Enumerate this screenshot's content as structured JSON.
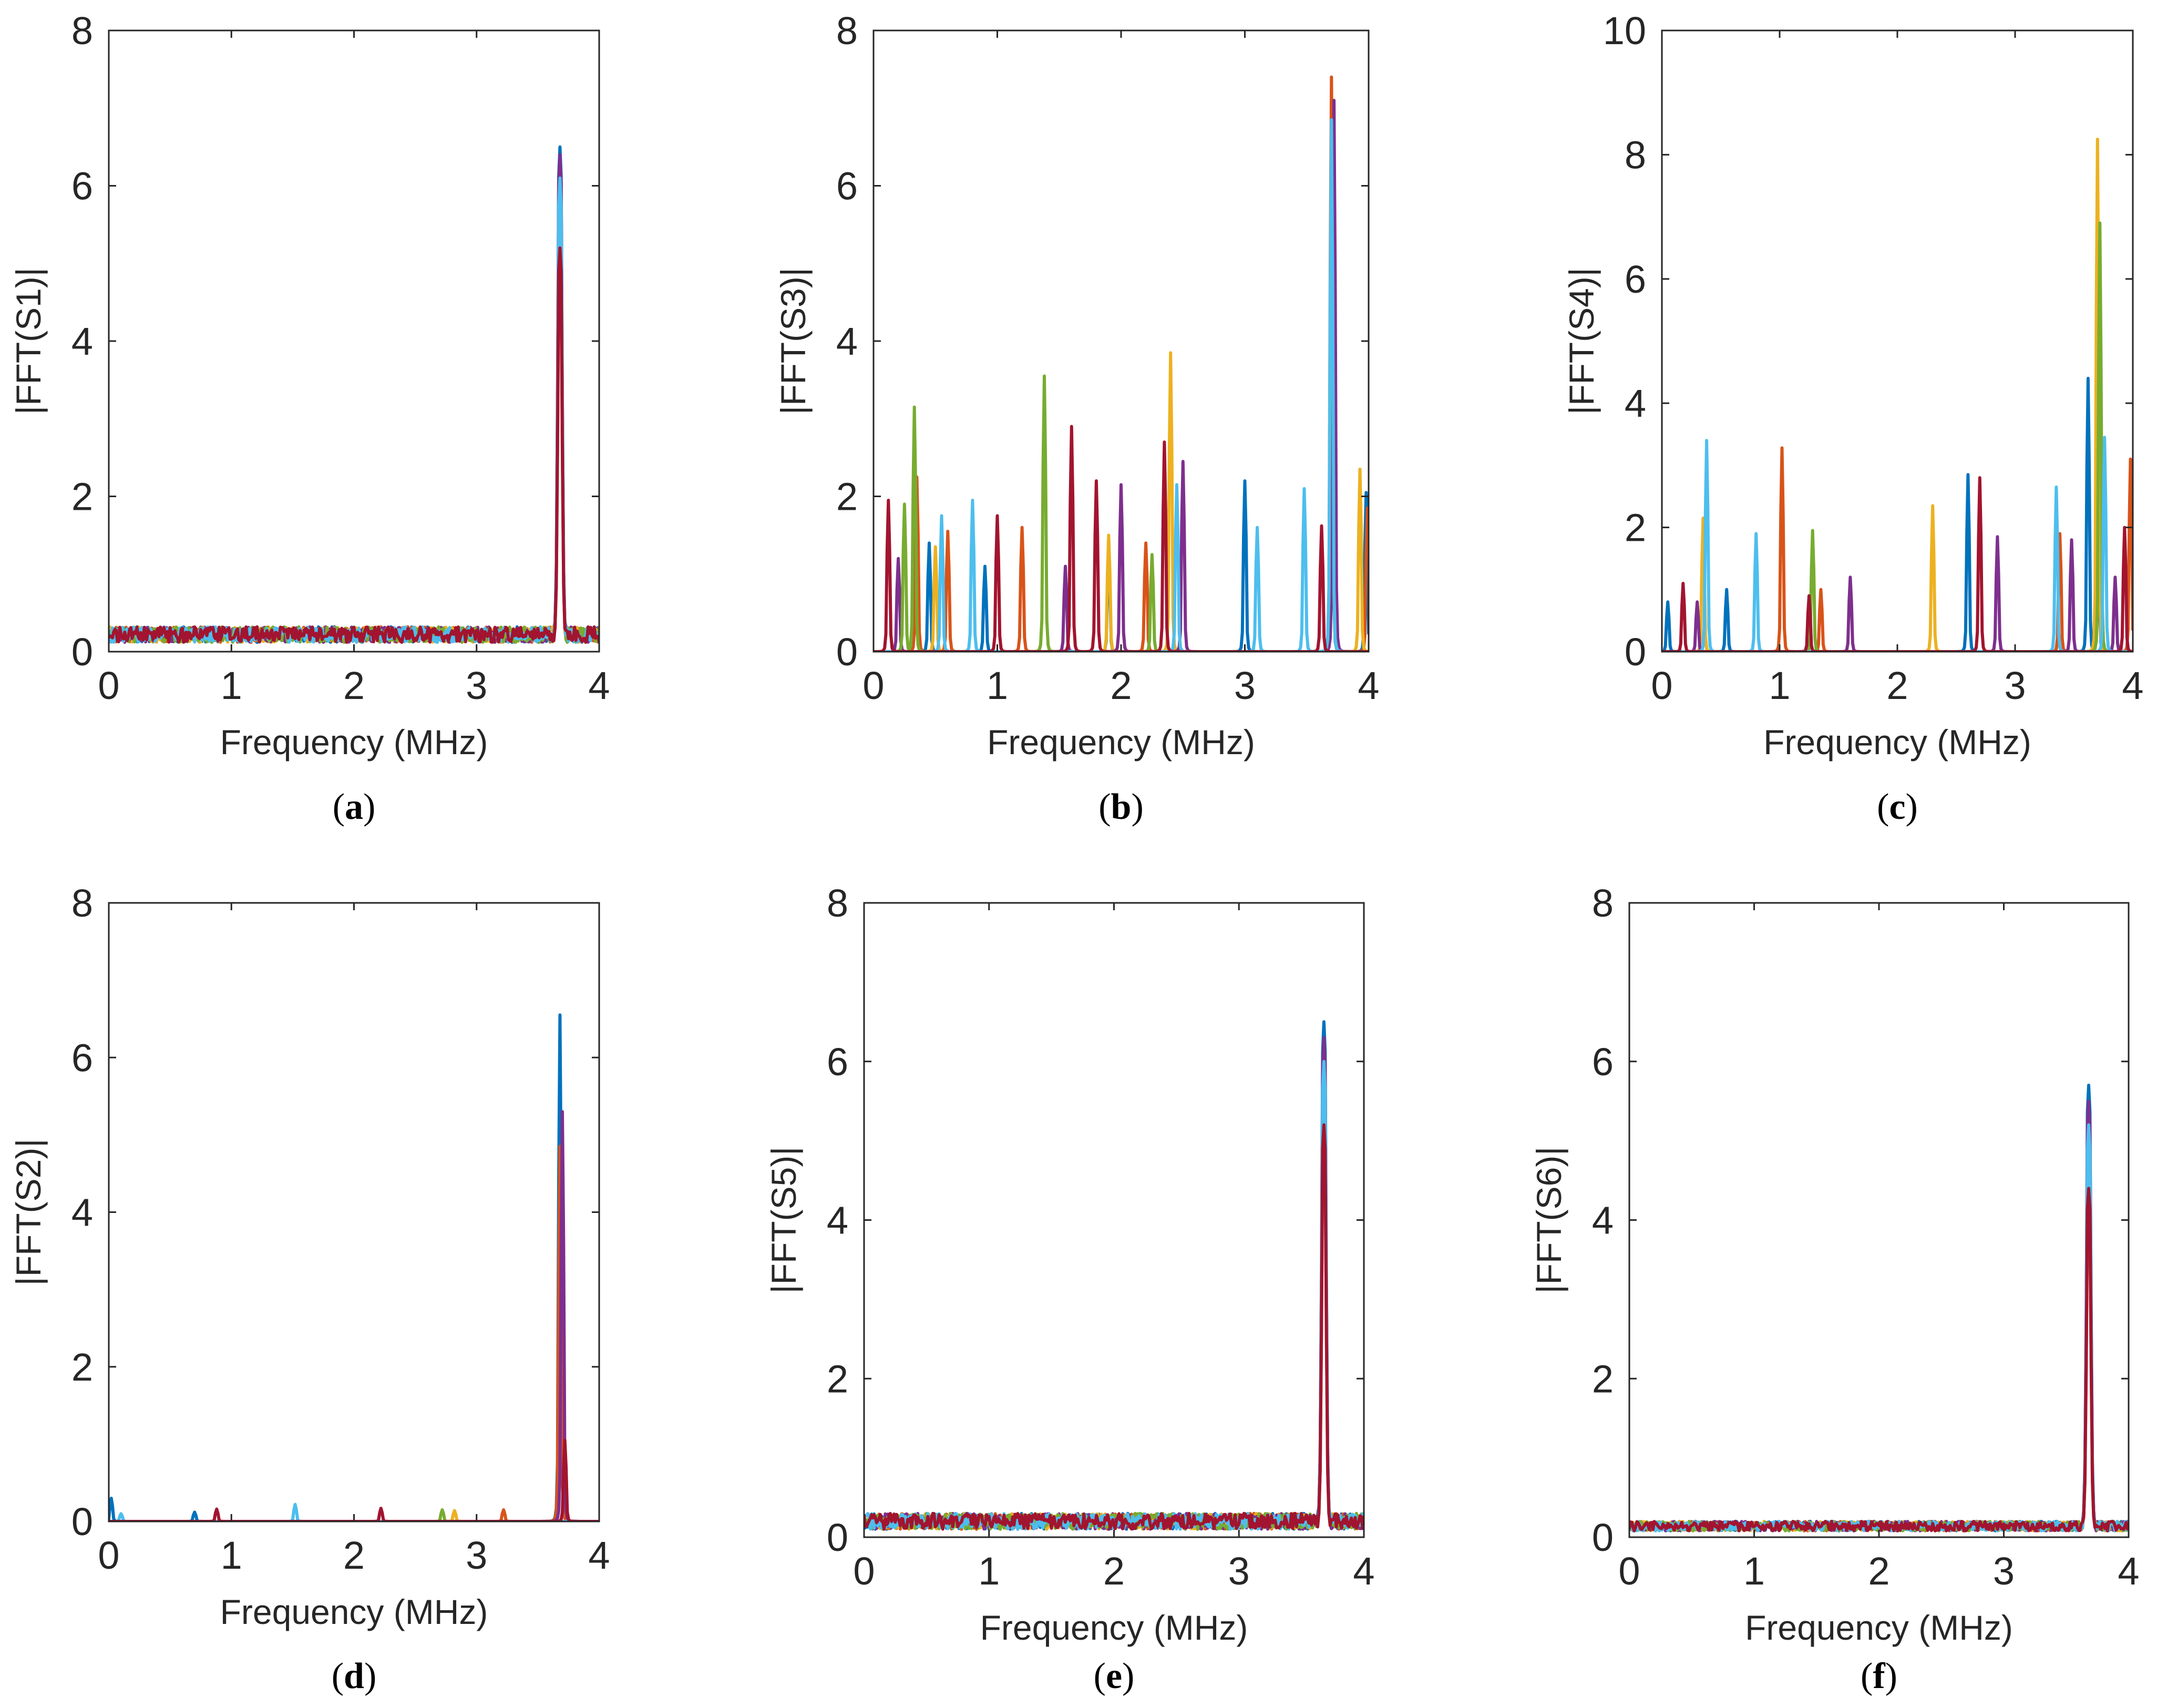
{
  "colors": {
    "series": [
      "#0072BD",
      "#D95319",
      "#EDB120",
      "#7E2F8E",
      "#77AC30",
      "#4DBEEE",
      "#A2142F"
    ],
    "axis": "#262626"
  },
  "chart_data": [
    {
      "id": "a",
      "type": "line",
      "caption": "a",
      "xlabel": "Frequency (MHz)",
      "ylabel": "|FFT(S1)|",
      "xlim": [
        0,
        4
      ],
      "ylim": [
        0,
        8
      ],
      "xticks": [
        "0",
        "1",
        "2",
        "3",
        "4"
      ],
      "yticks": [
        "0",
        "2",
        "4",
        "6",
        "8"
      ],
      "noise_level": 0.22,
      "noise_spread": 0.1,
      "series": [
        {
          "name": "blue",
          "peaks": [
            [
              3.68,
              6.5
            ]
          ]
        },
        {
          "name": "orange",
          "peaks": [
            [
              3.68,
              5.0
            ]
          ]
        },
        {
          "name": "yellow",
          "peaks": [
            [
              3.68,
              5.7
            ]
          ]
        },
        {
          "name": "purple",
          "peaks": [
            [
              3.68,
              6.4
            ]
          ]
        },
        {
          "name": "green",
          "peaks": [
            [
              3.68,
              5.5
            ]
          ]
        },
        {
          "name": "cyan",
          "peaks": [
            [
              3.68,
              6.1
            ]
          ]
        },
        {
          "name": "red",
          "peaks": [
            [
              3.68,
              5.2
            ]
          ]
        }
      ]
    },
    {
      "id": "b",
      "type": "line",
      "caption": "b",
      "xlabel": "Frequency (MHz)",
      "ylabel": "|FFT(S3)|",
      "xlim": [
        0,
        4
      ],
      "ylim": [
        0,
        8
      ],
      "xticks": [
        "0",
        "1",
        "2",
        "3",
        "4"
      ],
      "yticks": [
        "0",
        "2",
        "4",
        "6",
        "8"
      ],
      "noise_level": 0,
      "noise_spread": 0,
      "series": [
        {
          "name": "blue",
          "peaks": [
            [
              0.45,
              1.4
            ],
            [
              0.9,
              1.1
            ],
            [
              1.9,
              1.2
            ],
            [
              3.0,
              2.2
            ],
            [
              3.7,
              5.4
            ],
            [
              3.98,
              2.05
            ]
          ]
        },
        {
          "name": "orange",
          "peaks": [
            [
              0.35,
              2.25
            ],
            [
              0.6,
              1.55
            ],
            [
              1.2,
              1.6
            ],
            [
              2.2,
              1.4
            ],
            [
              3.7,
              7.4
            ],
            [
              3.99,
              1.85
            ]
          ]
        },
        {
          "name": "yellow",
          "peaks": [
            [
              0.5,
              1.35
            ],
            [
              1.9,
              1.5
            ],
            [
              2.4,
              3.85
            ],
            [
              3.93,
              2.35
            ]
          ]
        },
        {
          "name": "purple",
          "peaks": [
            [
              0.2,
              1.2
            ],
            [
              1.55,
              1.1
            ],
            [
              2.0,
              2.15
            ],
            [
              2.5,
              2.45
            ],
            [
              3.72,
              7.1
            ]
          ]
        },
        {
          "name": "green",
          "peaks": [
            [
              0.25,
              1.9
            ],
            [
              0.33,
              3.15
            ],
            [
              1.38,
              3.55
            ],
            [
              2.25,
              1.25
            ],
            [
              3.7,
              6.2
            ]
          ]
        },
        {
          "name": "cyan",
          "peaks": [
            [
              0.55,
              1.75
            ],
            [
              0.8,
              1.95
            ],
            [
              2.45,
              2.15
            ],
            [
              3.1,
              1.6
            ],
            [
              3.48,
              2.1
            ],
            [
              3.7,
              6.85
            ]
          ]
        },
        {
          "name": "red",
          "peaks": [
            [
              0.12,
              1.95
            ],
            [
              1.0,
              1.75
            ],
            [
              1.6,
              2.9
            ],
            [
              1.8,
              2.2
            ],
            [
              2.35,
              2.7
            ],
            [
              3.62,
              1.62
            ]
          ]
        }
      ]
    },
    {
      "id": "c",
      "type": "line",
      "caption": "c",
      "xlabel": "Frequency (MHz)",
      "ylabel": "|FFT(S4)|",
      "xlim": [
        0,
        4
      ],
      "ylim": [
        0,
        10
      ],
      "xticks": [
        "0",
        "1",
        "2",
        "3",
        "4"
      ],
      "yticks": [
        "0",
        "2",
        "4",
        "6",
        "8",
        "10"
      ],
      "noise_level": 0,
      "noise_spread": 0,
      "series": [
        {
          "name": "blue",
          "peaks": [
            [
              0.05,
              0.8
            ],
            [
              0.55,
              1.0
            ],
            [
              2.6,
              2.85
            ],
            [
              3.62,
              4.4
            ],
            [
              3.7,
              5.0
            ]
          ]
        },
        {
          "name": "orange",
          "peaks": [
            [
              1.02,
              3.28
            ],
            [
              1.35,
              1.0
            ],
            [
              3.38,
              1.9
            ],
            [
              3.98,
              3.1
            ]
          ]
        },
        {
          "name": "yellow",
          "peaks": [
            [
              0.35,
              2.15
            ],
            [
              2.3,
              2.35
            ],
            [
              3.7,
              8.25
            ]
          ]
        },
        {
          "name": "purple",
          "peaks": [
            [
              0.3,
              0.8
            ],
            [
              1.6,
              1.2
            ],
            [
              2.85,
              1.85
            ],
            [
              3.48,
              1.8
            ],
            [
              3.85,
              1.2
            ]
          ]
        },
        {
          "name": "green",
          "peaks": [
            [
              1.28,
              1.95
            ],
            [
              3.72,
              6.9
            ]
          ]
        },
        {
          "name": "cyan",
          "peaks": [
            [
              0.38,
              3.4
            ],
            [
              0.8,
              1.9
            ],
            [
              3.35,
              2.65
            ],
            [
              3.76,
              3.45
            ]
          ]
        },
        {
          "name": "red",
          "peaks": [
            [
              0.18,
              1.1
            ],
            [
              1.25,
              0.9
            ],
            [
              2.7,
              2.8
            ],
            [
              3.93,
              2.0
            ]
          ]
        }
      ]
    },
    {
      "id": "d",
      "type": "line",
      "caption": "d",
      "xlabel": "Frequency (MHz)",
      "ylabel": "|FFT(S2)|",
      "xlim": [
        0,
        4
      ],
      "ylim": [
        0,
        8
      ],
      "xticks": [
        "0",
        "1",
        "2",
        "3",
        "4"
      ],
      "yticks": [
        "0",
        "2",
        "4",
        "6",
        "8"
      ],
      "noise_level": 0,
      "noise_spread": 0,
      "series": [
        {
          "name": "blue",
          "peaks": [
            [
              0.02,
              0.3
            ],
            [
              0.7,
              0.12
            ],
            [
              3.68,
              6.55
            ]
          ]
        },
        {
          "name": "orange",
          "peaks": [
            [
              3.22,
              0.15
            ],
            [
              3.68,
              4.85
            ]
          ]
        },
        {
          "name": "yellow",
          "peaks": [
            [
              2.82,
              0.14
            ]
          ]
        },
        {
          "name": "purple",
          "peaks": [
            [
              3.7,
              5.3
            ]
          ]
        },
        {
          "name": "green",
          "peaks": [
            [
              2.72,
              0.15
            ]
          ]
        },
        {
          "name": "cyan",
          "peaks": [
            [
              1.52,
              0.22
            ],
            [
              0.1,
              0.1
            ]
          ]
        },
        {
          "name": "red",
          "peaks": [
            [
              0.88,
              0.16
            ],
            [
              2.22,
              0.17
            ],
            [
              3.72,
              1.05
            ]
          ]
        }
      ]
    },
    {
      "id": "e",
      "type": "line",
      "caption": "e",
      "xlabel": "Frequency (MHz)",
      "ylabel": "|FFT(S5)|",
      "xlim": [
        0,
        4
      ],
      "ylim": [
        0,
        8
      ],
      "xticks": [
        "0",
        "1",
        "2",
        "3",
        "4"
      ],
      "yticks": [
        "0",
        "2",
        "4",
        "6",
        "8"
      ],
      "noise_level": 0.2,
      "noise_spread": 0.1,
      "series": [
        {
          "name": "blue",
          "peaks": [
            [
              3.68,
              6.5
            ]
          ]
        },
        {
          "name": "orange",
          "peaks": [
            [
              3.68,
              5.0
            ]
          ]
        },
        {
          "name": "yellow",
          "peaks": [
            [
              3.68,
              5.7
            ]
          ]
        },
        {
          "name": "purple",
          "peaks": [
            [
              3.68,
              6.3
            ]
          ]
        },
        {
          "name": "green",
          "peaks": [
            [
              3.68,
              5.4
            ]
          ]
        },
        {
          "name": "cyan",
          "peaks": [
            [
              3.68,
              6.0
            ]
          ]
        },
        {
          "name": "red",
          "peaks": [
            [
              3.68,
              5.2
            ]
          ]
        }
      ]
    },
    {
      "id": "f",
      "type": "line",
      "caption": "f",
      "xlabel": "Frequency (MHz)",
      "ylabel": "|FFT(S6)|",
      "xlim": [
        0,
        4
      ],
      "ylim": [
        0,
        8
      ],
      "xticks": [
        "0",
        "1",
        "2",
        "3",
        "4"
      ],
      "yticks": [
        "0",
        "2",
        "4",
        "6",
        "8"
      ],
      "noise_level": 0.14,
      "noise_spread": 0.06,
      "series": [
        {
          "name": "blue",
          "peaks": [
            [
              3.68,
              5.7
            ]
          ]
        },
        {
          "name": "orange",
          "peaks": [
            [
              3.68,
              4.2
            ]
          ]
        },
        {
          "name": "yellow",
          "peaks": [
            [
              3.68,
              4.9
            ]
          ]
        },
        {
          "name": "purple",
          "peaks": [
            [
              3.68,
              5.5
            ]
          ]
        },
        {
          "name": "green",
          "peaks": [
            [
              3.68,
              4.6
            ]
          ]
        },
        {
          "name": "cyan",
          "peaks": [
            [
              3.68,
              5.2
            ]
          ]
        },
        {
          "name": "red",
          "peaks": [
            [
              3.68,
              4.4
            ]
          ]
        }
      ]
    }
  ]
}
